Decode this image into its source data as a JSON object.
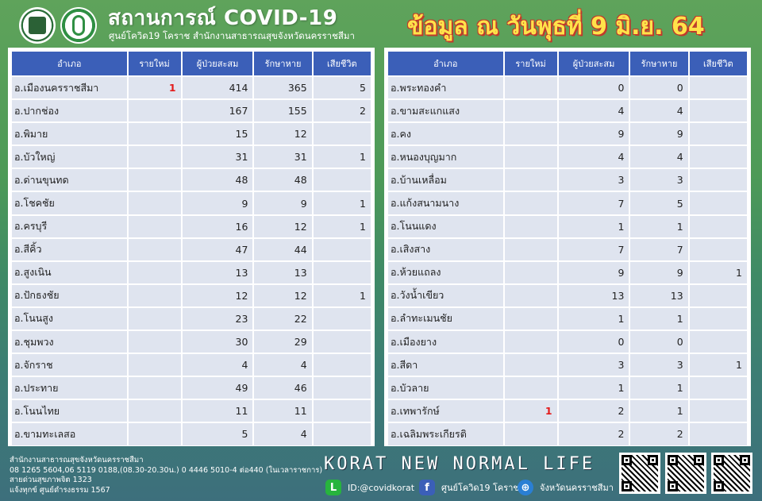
{
  "header": {
    "title": "สถานการณ์ COVID-19",
    "subtitle": "ศูนย์โควิด19 โคราช สำนักงานสาธารณสุขจังหวัดนครราชสีมา",
    "date_title": "ข้อมูล ณ วันพุธที่ 9 มิ.ย. 64"
  },
  "table_headers": [
    "อำเภอ",
    "รายใหม่",
    "ผู้ป่วยสะสม",
    "รักษาหาย",
    "เสียชีวิต"
  ],
  "left_rows": [
    {
      "district": "อ.เมืองนครราชสีมา",
      "new": "1",
      "total": "414",
      "recovered": "365",
      "deaths": "5"
    },
    {
      "district": "อ.ปากช่อง",
      "new": "",
      "total": "167",
      "recovered": "155",
      "deaths": "2"
    },
    {
      "district": "อ.พิมาย",
      "new": "",
      "total": "15",
      "recovered": "12",
      "deaths": ""
    },
    {
      "district": "อ.บัวใหญ่",
      "new": "",
      "total": "31",
      "recovered": "31",
      "deaths": "1"
    },
    {
      "district": "อ.ด่านขุนทด",
      "new": "",
      "total": "48",
      "recovered": "48",
      "deaths": ""
    },
    {
      "district": "อ.โชคชัย",
      "new": "",
      "total": "9",
      "recovered": "9",
      "deaths": "1"
    },
    {
      "district": "อ.ครบุรี",
      "new": "",
      "total": "16",
      "recovered": "12",
      "deaths": "1"
    },
    {
      "district": "อ.สีคิ้ว",
      "new": "",
      "total": "47",
      "recovered": "44",
      "deaths": ""
    },
    {
      "district": "อ.สูงเนิน",
      "new": "",
      "total": "13",
      "recovered": "13",
      "deaths": ""
    },
    {
      "district": "อ.ปักธงชัย",
      "new": "",
      "total": "12",
      "recovered": "12",
      "deaths": "1"
    },
    {
      "district": "อ.โนนสูง",
      "new": "",
      "total": "23",
      "recovered": "22",
      "deaths": ""
    },
    {
      "district": "อ.ชุมพวง",
      "new": "",
      "total": "30",
      "recovered": "29",
      "deaths": ""
    },
    {
      "district": "อ.จักราช",
      "new": "",
      "total": "4",
      "recovered": "4",
      "deaths": ""
    },
    {
      "district": "อ.ประทาย",
      "new": "",
      "total": "49",
      "recovered": "46",
      "deaths": ""
    },
    {
      "district": "อ.โนนไทย",
      "new": "",
      "total": "11",
      "recovered": "11",
      "deaths": ""
    },
    {
      "district": "อ.ขามทะเลสอ",
      "new": "",
      "total": "5",
      "recovered": "4",
      "deaths": ""
    }
  ],
  "right_rows": [
    {
      "district": "อ.พระทองคำ",
      "new": "",
      "total": "0",
      "recovered": "0",
      "deaths": ""
    },
    {
      "district": "อ.ขามสะแกแสง",
      "new": "",
      "total": "4",
      "recovered": "4",
      "deaths": ""
    },
    {
      "district": "อ.คง",
      "new": "",
      "total": "9",
      "recovered": "9",
      "deaths": ""
    },
    {
      "district": "อ.หนองบุญมาก",
      "new": "",
      "total": "4",
      "recovered": "4",
      "deaths": ""
    },
    {
      "district": "อ.บ้านเหลื่อม",
      "new": "",
      "total": "3",
      "recovered": "3",
      "deaths": ""
    },
    {
      "district": "อ.แก้งสนามนาง",
      "new": "",
      "total": "7",
      "recovered": "5",
      "deaths": ""
    },
    {
      "district": "อ.โนนแดง",
      "new": "",
      "total": "1",
      "recovered": "1",
      "deaths": ""
    },
    {
      "district": "อ.เสิงสาง",
      "new": "",
      "total": "7",
      "recovered": "7",
      "deaths": ""
    },
    {
      "district": "อ.ห้วยแถลง",
      "new": "",
      "total": "9",
      "recovered": "9",
      "deaths": "1"
    },
    {
      "district": "อ.วังน้ำเขียว",
      "new": "",
      "total": "13",
      "recovered": "13",
      "deaths": ""
    },
    {
      "district": "อ.ลำทะเมนชัย",
      "new": "",
      "total": "1",
      "recovered": "1",
      "deaths": ""
    },
    {
      "district": "อ.เมืองยาง",
      "new": "",
      "total": "0",
      "recovered": "0",
      "deaths": ""
    },
    {
      "district": "อ.สีดา",
      "new": "",
      "total": "3",
      "recovered": "3",
      "deaths": "1"
    },
    {
      "district": "อ.บัวลาย",
      "new": "",
      "total": "1",
      "recovered": "1",
      "deaths": ""
    },
    {
      "district": "อ.เทพารักษ์",
      "new": "1",
      "total": "2",
      "recovered": "1",
      "deaths": ""
    },
    {
      "district": "อ.เฉลิมพระเกียรติ",
      "new": "",
      "total": "2",
      "recovered": "2",
      "deaths": ""
    }
  ],
  "footer": {
    "address_lines": [
      "สำนักงานสาธารณสุขจังหวัดนครราชสีมา",
      "08 1265 5604,06 5119 0188,(08.30-20.30น.) 0 4446 5010-4 ต่อ440 (ในเวลาราชการ)",
      "สายด่วนสุขภาพจิต 1323",
      "แจ้งทุกข์ ศูนย์ดำรงธรรม 1567"
    ],
    "slogan": "KORAT NEW NORMAL LIFE",
    "line_id": "ID:@covidkorat",
    "facebook": "ศูนย์โควิด19 โคราช",
    "website": "จังหวัดนครราชสีมา"
  },
  "colors": {
    "header_cell": "#3b5fb8",
    "body_cell": "#dfe4ef",
    "new_case": "#e31b1b",
    "date_title": "#ffe34a"
  }
}
